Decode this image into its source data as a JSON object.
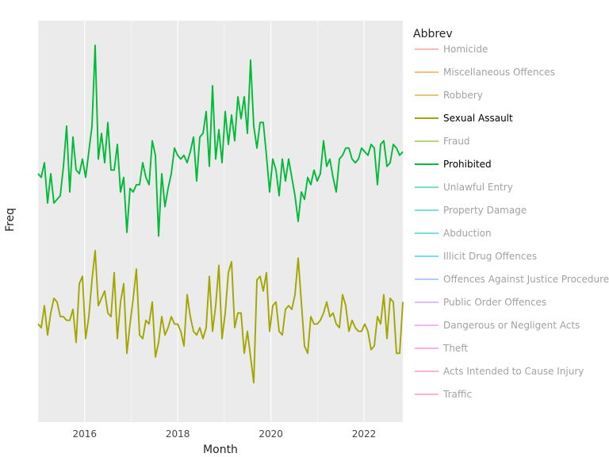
{
  "chart_data": {
    "type": "line",
    "xlabel": "Month",
    "ylabel": "Freq",
    "x_start": "2015-01",
    "x_end": "2022-11",
    "x_ticks": [
      "2016",
      "2018",
      "2020",
      "2022"
    ],
    "y_tick_labels_shown": false,
    "grid": true,
    "legend": {
      "title": "Abbrev",
      "placement": "right",
      "entries": [
        {
          "name": "Homicide",
          "color": "#f8766d",
          "active": false
        },
        {
          "name": "Miscellaneous Offences",
          "color": "#e58700",
          "active": false
        },
        {
          "name": "Robbery",
          "color": "#c99800",
          "active": false
        },
        {
          "name": "Sexual Assault",
          "color": "#a3a500",
          "active": true
        },
        {
          "name": "Fraud",
          "color": "#6bb100",
          "active": false
        },
        {
          "name": "Prohibited",
          "color": "#00ba38",
          "active": true
        },
        {
          "name": "Unlawful Entry",
          "color": "#00bf7d",
          "active": false
        },
        {
          "name": "Property Damage",
          "color": "#00c0af",
          "active": false
        },
        {
          "name": "Abduction",
          "color": "#00bcd8",
          "active": false
        },
        {
          "name": "Illicit Drug Offences",
          "color": "#00b0f6",
          "active": false
        },
        {
          "name": "Offences Against Justice Procedure",
          "color": "#619cff",
          "active": false
        },
        {
          "name": "Public Order Offences",
          "color": "#b983ff",
          "active": false
        },
        {
          "name": "Dangerous or Negligent Acts",
          "color": "#e76bf3",
          "active": false
        },
        {
          "name": "Theft",
          "color": "#fd61d1",
          "active": false
        },
        {
          "name": "Acts Intended to Cause Injury",
          "color": "#ff67a4",
          "active": false
        },
        {
          "name": "Traffic",
          "color": "#ff6c91",
          "active": false
        }
      ]
    },
    "ylim": [
      0,
      100
    ],
    "series": [
      {
        "name": "Prohibited",
        "color": "#00ba38",
        "values": [
          63,
          62,
          66,
          55,
          63,
          55,
          56,
          57,
          65,
          76,
          58,
          73,
          64,
          63,
          67,
          62,
          69,
          76,
          98,
          67,
          74,
          66,
          77,
          64,
          64,
          71,
          58,
          62,
          47,
          59,
          58,
          60,
          60,
          66,
          62,
          60,
          72,
          68,
          46,
          63,
          54,
          59,
          63,
          70,
          68,
          67,
          68,
          66,
          69,
          73,
          61,
          73,
          74,
          80,
          65,
          87,
          67,
          75,
          66,
          80,
          71,
          79,
          72,
          84,
          78,
          84,
          74,
          94,
          76,
          70,
          77,
          77,
          68,
          58,
          67,
          64,
          57,
          67,
          61,
          67,
          62,
          57,
          50,
          58,
          56,
          62,
          60,
          64,
          61,
          63,
          72,
          65,
          67,
          62,
          58,
          67,
          68,
          70,
          70,
          67,
          66,
          67,
          70,
          69,
          68,
          71,
          70,
          60,
          71,
          72,
          65,
          66,
          71,
          70,
          68,
          69
        ]
      },
      {
        "name": "Sexual Assault",
        "color": "#a3a500",
        "values": [
          22,
          21,
          27,
          19,
          25,
          29,
          28,
          24,
          24,
          23,
          23,
          26,
          17,
          33,
          35,
          18,
          24,
          34,
          42,
          27,
          29,
          31,
          25,
          24,
          36,
          18,
          28,
          33,
          14,
          22,
          29,
          37,
          19,
          18,
          23,
          22,
          28,
          13,
          17,
          24,
          19,
          21,
          24,
          22,
          22,
          20,
          16,
          30,
          24,
          20,
          19,
          21,
          18,
          21,
          35,
          20,
          27,
          38,
          18,
          25,
          36,
          39,
          21,
          25,
          25,
          14,
          20,
          13,
          6,
          34,
          35,
          31,
          36,
          20,
          27,
          28,
          20,
          19,
          26,
          27,
          26,
          30,
          40,
          28,
          16,
          14,
          24,
          22,
          22,
          23,
          25,
          28,
          24,
          25,
          22,
          21,
          30,
          27,
          20,
          23,
          21,
          20,
          20,
          22,
          20,
          15,
          16,
          24,
          22,
          30,
          18,
          29,
          28,
          14,
          14,
          28
        ]
      }
    ]
  }
}
